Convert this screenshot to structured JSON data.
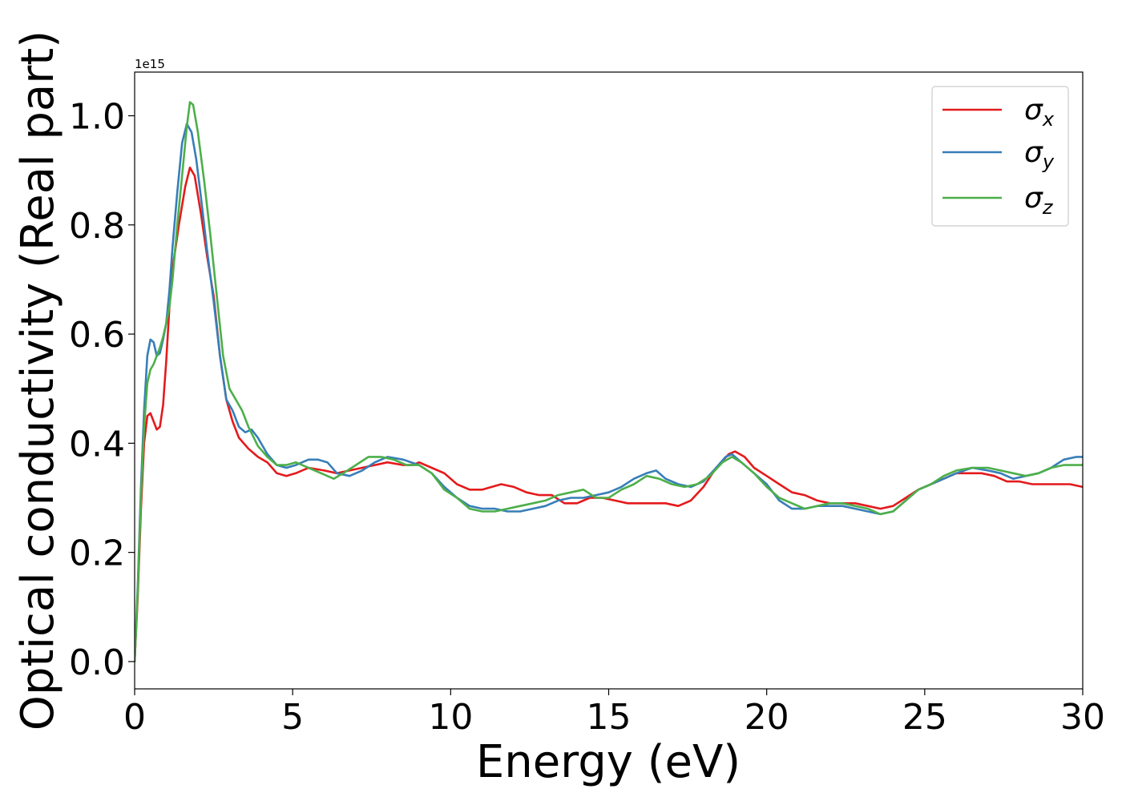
{
  "chart_data": {
    "type": "line",
    "xlabel": "Energy (eV)",
    "ylabel": "Optical conductivity (Real part)",
    "offset_text": "1e15",
    "xlim": [
      0,
      30
    ],
    "ylim": [
      -0.05,
      1.08
    ],
    "xticks": [
      0,
      5,
      10,
      15,
      20,
      25,
      30
    ],
    "xtick_labels": [
      "0",
      "5",
      "10",
      "15",
      "20",
      "25",
      "30"
    ],
    "yticks": [
      0.0,
      0.2,
      0.4,
      0.6,
      0.8,
      1.0
    ],
    "ytick_labels": [
      "0.0",
      "0.2",
      "0.4",
      "0.6",
      "0.8",
      "1.0"
    ],
    "grid": false,
    "legend_position": "top-right",
    "series": [
      {
        "name": "σx",
        "label_base": "σ",
        "label_sub": "x",
        "color": "#e41a1c",
        "points": [
          [
            0,
            0
          ],
          [
            0.1,
            0.12
          ],
          [
            0.2,
            0.28
          ],
          [
            0.3,
            0.4
          ],
          [
            0.4,
            0.45
          ],
          [
            0.5,
            0.455
          ],
          [
            0.6,
            0.44
          ],
          [
            0.7,
            0.425
          ],
          [
            0.8,
            0.43
          ],
          [
            0.9,
            0.47
          ],
          [
            1.0,
            0.55
          ],
          [
            1.1,
            0.65
          ],
          [
            1.2,
            0.72
          ],
          [
            1.4,
            0.8
          ],
          [
            1.6,
            0.87
          ],
          [
            1.75,
            0.905
          ],
          [
            1.9,
            0.89
          ],
          [
            2.1,
            0.82
          ],
          [
            2.3,
            0.74
          ],
          [
            2.5,
            0.67
          ],
          [
            2.7,
            0.56
          ],
          [
            2.9,
            0.48
          ],
          [
            3.1,
            0.44
          ],
          [
            3.3,
            0.41
          ],
          [
            3.6,
            0.39
          ],
          [
            3.9,
            0.375
          ],
          [
            4.2,
            0.365
          ],
          [
            4.5,
            0.345
          ],
          [
            4.8,
            0.34
          ],
          [
            5.1,
            0.345
          ],
          [
            5.5,
            0.355
          ],
          [
            6.0,
            0.35
          ],
          [
            6.4,
            0.345
          ],
          [
            6.8,
            0.35
          ],
          [
            7.2,
            0.355
          ],
          [
            7.6,
            0.36
          ],
          [
            8.0,
            0.365
          ],
          [
            8.5,
            0.36
          ],
          [
            8.8,
            0.36
          ],
          [
            9.0,
            0.365
          ],
          [
            9.4,
            0.355
          ],
          [
            9.8,
            0.345
          ],
          [
            10.2,
            0.325
          ],
          [
            10.6,
            0.315
          ],
          [
            11.0,
            0.315
          ],
          [
            11.3,
            0.32
          ],
          [
            11.6,
            0.325
          ],
          [
            12.0,
            0.32
          ],
          [
            12.4,
            0.31
          ],
          [
            12.8,
            0.305
          ],
          [
            13.2,
            0.305
          ],
          [
            13.6,
            0.29
          ],
          [
            14.0,
            0.29
          ],
          [
            14.4,
            0.3
          ],
          [
            14.8,
            0.3
          ],
          [
            15.2,
            0.295
          ],
          [
            15.6,
            0.29
          ],
          [
            16.0,
            0.29
          ],
          [
            16.4,
            0.29
          ],
          [
            16.8,
            0.29
          ],
          [
            17.2,
            0.285
          ],
          [
            17.6,
            0.295
          ],
          [
            18.0,
            0.32
          ],
          [
            18.4,
            0.355
          ],
          [
            18.8,
            0.38
          ],
          [
            19.0,
            0.385
          ],
          [
            19.3,
            0.375
          ],
          [
            19.6,
            0.355
          ],
          [
            20.0,
            0.34
          ],
          [
            20.4,
            0.325
          ],
          [
            20.8,
            0.31
          ],
          [
            21.2,
            0.305
          ],
          [
            21.6,
            0.295
          ],
          [
            22.0,
            0.29
          ],
          [
            22.4,
            0.29
          ],
          [
            22.8,
            0.29
          ],
          [
            23.2,
            0.285
          ],
          [
            23.6,
            0.28
          ],
          [
            24.0,
            0.285
          ],
          [
            24.4,
            0.3
          ],
          [
            24.8,
            0.315
          ],
          [
            25.2,
            0.325
          ],
          [
            25.6,
            0.335
          ],
          [
            26.0,
            0.345
          ],
          [
            26.4,
            0.345
          ],
          [
            26.8,
            0.345
          ],
          [
            27.2,
            0.34
          ],
          [
            27.6,
            0.33
          ],
          [
            28.0,
            0.33
          ],
          [
            28.4,
            0.325
          ],
          [
            28.8,
            0.325
          ],
          [
            29.2,
            0.325
          ],
          [
            29.6,
            0.325
          ],
          [
            30.0,
            0.32
          ]
        ]
      },
      {
        "name": "σy",
        "label_base": "σ",
        "label_sub": "y",
        "color": "#377eb8",
        "points": [
          [
            0,
            0
          ],
          [
            0.1,
            0.14
          ],
          [
            0.2,
            0.32
          ],
          [
            0.3,
            0.46
          ],
          [
            0.4,
            0.56
          ],
          [
            0.5,
            0.59
          ],
          [
            0.6,
            0.585
          ],
          [
            0.7,
            0.56
          ],
          [
            0.8,
            0.565
          ],
          [
            0.9,
            0.59
          ],
          [
            1.0,
            0.62
          ],
          [
            1.1,
            0.68
          ],
          [
            1.2,
            0.76
          ],
          [
            1.35,
            0.86
          ],
          [
            1.5,
            0.95
          ],
          [
            1.65,
            0.985
          ],
          [
            1.8,
            0.97
          ],
          [
            1.95,
            0.92
          ],
          [
            2.1,
            0.85
          ],
          [
            2.3,
            0.75
          ],
          [
            2.5,
            0.66
          ],
          [
            2.7,
            0.56
          ],
          [
            2.9,
            0.48
          ],
          [
            3.1,
            0.46
          ],
          [
            3.3,
            0.43
          ],
          [
            3.5,
            0.42
          ],
          [
            3.7,
            0.425
          ],
          [
            3.9,
            0.41
          ],
          [
            4.2,
            0.38
          ],
          [
            4.5,
            0.36
          ],
          [
            4.8,
            0.355
          ],
          [
            5.1,
            0.36
          ],
          [
            5.5,
            0.37
          ],
          [
            5.8,
            0.37
          ],
          [
            6.1,
            0.365
          ],
          [
            6.4,
            0.345
          ],
          [
            6.8,
            0.34
          ],
          [
            7.2,
            0.35
          ],
          [
            7.6,
            0.365
          ],
          [
            8.0,
            0.375
          ],
          [
            8.5,
            0.37
          ],
          [
            9.0,
            0.36
          ],
          [
            9.4,
            0.345
          ],
          [
            9.8,
            0.32
          ],
          [
            10.2,
            0.3
          ],
          [
            10.6,
            0.285
          ],
          [
            11.0,
            0.28
          ],
          [
            11.4,
            0.28
          ],
          [
            11.8,
            0.275
          ],
          [
            12.2,
            0.275
          ],
          [
            12.6,
            0.28
          ],
          [
            13.0,
            0.285
          ],
          [
            13.4,
            0.295
          ],
          [
            13.8,
            0.3
          ],
          [
            14.2,
            0.3
          ],
          [
            14.6,
            0.305
          ],
          [
            15.0,
            0.31
          ],
          [
            15.4,
            0.32
          ],
          [
            15.8,
            0.335
          ],
          [
            16.2,
            0.345
          ],
          [
            16.5,
            0.35
          ],
          [
            16.8,
            0.335
          ],
          [
            17.2,
            0.325
          ],
          [
            17.6,
            0.32
          ],
          [
            18.0,
            0.33
          ],
          [
            18.4,
            0.355
          ],
          [
            18.7,
            0.375
          ],
          [
            18.9,
            0.38
          ],
          [
            19.2,
            0.365
          ],
          [
            19.6,
            0.345
          ],
          [
            20.0,
            0.325
          ],
          [
            20.4,
            0.295
          ],
          [
            20.8,
            0.28
          ],
          [
            21.2,
            0.28
          ],
          [
            21.6,
            0.285
          ],
          [
            22.0,
            0.285
          ],
          [
            22.4,
            0.285
          ],
          [
            22.8,
            0.28
          ],
          [
            23.2,
            0.275
          ],
          [
            23.6,
            0.27
          ],
          [
            24.0,
            0.275
          ],
          [
            24.4,
            0.295
          ],
          [
            24.8,
            0.315
          ],
          [
            25.2,
            0.325
          ],
          [
            25.6,
            0.335
          ],
          [
            26.0,
            0.345
          ],
          [
            26.5,
            0.355
          ],
          [
            27.0,
            0.35
          ],
          [
            27.4,
            0.345
          ],
          [
            27.8,
            0.335
          ],
          [
            28.2,
            0.34
          ],
          [
            28.6,
            0.345
          ],
          [
            29.0,
            0.355
          ],
          [
            29.4,
            0.37
          ],
          [
            29.8,
            0.375
          ],
          [
            30.0,
            0.375
          ]
        ]
      },
      {
        "name": "σz",
        "label_base": "σ",
        "label_sub": "z",
        "color": "#4daf4a",
        "points": [
          [
            0,
            0
          ],
          [
            0.1,
            0.13
          ],
          [
            0.2,
            0.3
          ],
          [
            0.3,
            0.43
          ],
          [
            0.4,
            0.51
          ],
          [
            0.5,
            0.535
          ],
          [
            0.6,
            0.545
          ],
          [
            0.7,
            0.56
          ],
          [
            0.8,
            0.575
          ],
          [
            0.9,
            0.595
          ],
          [
            1.0,
            0.62
          ],
          [
            1.1,
            0.65
          ],
          [
            1.2,
            0.7
          ],
          [
            1.35,
            0.8
          ],
          [
            1.5,
            0.89
          ],
          [
            1.65,
            0.98
          ],
          [
            1.75,
            1.025
          ],
          [
            1.85,
            1.02
          ],
          [
            2.0,
            0.97
          ],
          [
            2.2,
            0.88
          ],
          [
            2.4,
            0.78
          ],
          [
            2.6,
            0.67
          ],
          [
            2.8,
            0.56
          ],
          [
            3.0,
            0.5
          ],
          [
            3.2,
            0.48
          ],
          [
            3.4,
            0.46
          ],
          [
            3.6,
            0.43
          ],
          [
            3.9,
            0.395
          ],
          [
            4.2,
            0.375
          ],
          [
            4.5,
            0.36
          ],
          [
            4.8,
            0.36
          ],
          [
            5.1,
            0.365
          ],
          [
            5.5,
            0.355
          ],
          [
            5.9,
            0.345
          ],
          [
            6.3,
            0.335
          ],
          [
            6.6,
            0.345
          ],
          [
            7.0,
            0.36
          ],
          [
            7.4,
            0.375
          ],
          [
            7.8,
            0.375
          ],
          [
            8.2,
            0.37
          ],
          [
            8.6,
            0.36
          ],
          [
            9.0,
            0.36
          ],
          [
            9.4,
            0.345
          ],
          [
            9.8,
            0.315
          ],
          [
            10.2,
            0.3
          ],
          [
            10.6,
            0.28
          ],
          [
            11.0,
            0.275
          ],
          [
            11.4,
            0.275
          ],
          [
            11.8,
            0.28
          ],
          [
            12.2,
            0.285
          ],
          [
            12.6,
            0.29
          ],
          [
            13.0,
            0.295
          ],
          [
            13.4,
            0.305
          ],
          [
            13.8,
            0.31
          ],
          [
            14.2,
            0.315
          ],
          [
            14.6,
            0.3
          ],
          [
            15.0,
            0.3
          ],
          [
            15.4,
            0.315
          ],
          [
            15.8,
            0.325
          ],
          [
            16.2,
            0.34
          ],
          [
            16.6,
            0.335
          ],
          [
            17.0,
            0.325
          ],
          [
            17.4,
            0.32
          ],
          [
            17.8,
            0.325
          ],
          [
            18.2,
            0.34
          ],
          [
            18.6,
            0.365
          ],
          [
            18.9,
            0.375
          ],
          [
            19.2,
            0.365
          ],
          [
            19.6,
            0.345
          ],
          [
            20.0,
            0.32
          ],
          [
            20.4,
            0.3
          ],
          [
            20.8,
            0.29
          ],
          [
            21.2,
            0.28
          ],
          [
            21.6,
            0.285
          ],
          [
            22.0,
            0.29
          ],
          [
            22.4,
            0.29
          ],
          [
            22.8,
            0.285
          ],
          [
            23.2,
            0.28
          ],
          [
            23.6,
            0.27
          ],
          [
            24.0,
            0.275
          ],
          [
            24.4,
            0.295
          ],
          [
            24.8,
            0.315
          ],
          [
            25.2,
            0.325
          ],
          [
            25.6,
            0.34
          ],
          [
            26.0,
            0.35
          ],
          [
            26.5,
            0.355
          ],
          [
            27.0,
            0.355
          ],
          [
            27.4,
            0.35
          ],
          [
            27.8,
            0.345
          ],
          [
            28.2,
            0.34
          ],
          [
            28.6,
            0.345
          ],
          [
            29.0,
            0.355
          ],
          [
            29.4,
            0.36
          ],
          [
            29.8,
            0.36
          ],
          [
            30.0,
            0.36
          ]
        ]
      }
    ]
  }
}
